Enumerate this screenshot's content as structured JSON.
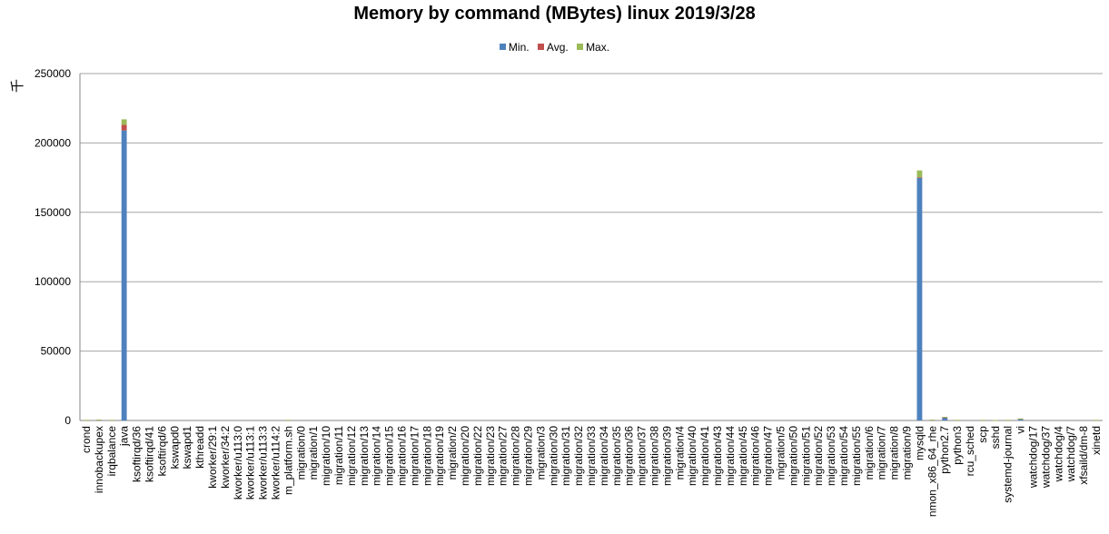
{
  "chart_data": {
    "type": "bar",
    "stacked": true,
    "title": "Memory by command (MBytes) linux  2019/3/28",
    "y_unit": "千",
    "xlabel": "",
    "ylabel": "",
    "ylim": [
      0,
      250000
    ],
    "yticks": [
      0,
      50000,
      100000,
      150000,
      200000,
      250000
    ],
    "grid": true,
    "legend_position": "top",
    "categories": [
      "crond",
      "innobackupex",
      "irqbalance",
      "java",
      "ksoftirqd/36",
      "ksoftirqd/41",
      "ksoftirqd/6",
      "kswapd0",
      "kswapd1",
      "kthreadd",
      "kworker/29:1",
      "kworker/34:2",
      "kworker/u113:0",
      "kworker/u113:1",
      "kworker/u113:3",
      "kworker/u114:2",
      "m_platform.sh",
      "migration/0",
      "migration/1",
      "migration/10",
      "migration/11",
      "migration/12",
      "migration/13",
      "migration/14",
      "migration/15",
      "migration/16",
      "migration/17",
      "migration/18",
      "migration/19",
      "migration/2",
      "migration/20",
      "migration/22",
      "migration/23",
      "migration/27",
      "migration/28",
      "migration/29",
      "migration/3",
      "migration/30",
      "migration/31",
      "migration/32",
      "migration/33",
      "migration/34",
      "migration/35",
      "migration/36",
      "migration/37",
      "migration/38",
      "migration/39",
      "migration/4",
      "migration/40",
      "migration/41",
      "migration/43",
      "migration/44",
      "migration/45",
      "migration/46",
      "migration/47",
      "migration/5",
      "migration/50",
      "migration/51",
      "migration/52",
      "migration/53",
      "migration/54",
      "migration/55",
      "migration/6",
      "migration/7",
      "migration/8",
      "migration/9",
      "mysqld",
      "nmon_x86_64_rhe",
      "python2.7",
      "python3",
      "rcu_sched",
      "scp",
      "sshd",
      "systemd-journal",
      "vi",
      "watchdog/17",
      "watchdog/37",
      "watchdog/4",
      "watchdog/7",
      "xfsaild/dm-8",
      "xinetd"
    ],
    "series": [
      {
        "name": "Min.",
        "color": "#4f81bd",
        "values": [
          300,
          400,
          300,
          209000,
          0,
          0,
          0,
          0,
          0,
          0,
          0,
          0,
          0,
          0,
          0,
          0,
          300,
          0,
          0,
          0,
          0,
          0,
          0,
          0,
          0,
          0,
          0,
          0,
          0,
          0,
          0,
          0,
          0,
          0,
          0,
          0,
          0,
          0,
          0,
          0,
          0,
          0,
          0,
          0,
          0,
          0,
          0,
          0,
          0,
          0,
          0,
          0,
          0,
          0,
          0,
          0,
          0,
          0,
          0,
          0,
          0,
          0,
          0,
          0,
          0,
          0,
          175000,
          400,
          2000,
          300,
          0,
          300,
          200,
          300,
          1200,
          0,
          0,
          0,
          0,
          0,
          300
        ]
      },
      {
        "name": "Avg.",
        "color": "#c0504d",
        "values": [
          50,
          100,
          50,
          4000,
          0,
          0,
          0,
          0,
          0,
          0,
          0,
          0,
          0,
          0,
          0,
          0,
          50,
          0,
          0,
          0,
          0,
          0,
          0,
          0,
          0,
          0,
          0,
          0,
          0,
          0,
          0,
          0,
          0,
          0,
          0,
          0,
          0,
          0,
          0,
          0,
          0,
          0,
          0,
          0,
          0,
          0,
          0,
          0,
          0,
          0,
          0,
          0,
          0,
          0,
          0,
          0,
          0,
          0,
          0,
          0,
          0,
          0,
          0,
          0,
          0,
          0,
          200,
          50,
          300,
          50,
          0,
          50,
          50,
          50,
          100,
          0,
          0,
          0,
          0,
          0,
          50
        ]
      },
      {
        "name": "Max.",
        "color": "#9bbb59",
        "values": [
          50,
          100,
          50,
          4000,
          0,
          0,
          0,
          0,
          0,
          0,
          0,
          0,
          0,
          0,
          0,
          0,
          50,
          0,
          0,
          0,
          0,
          0,
          0,
          0,
          0,
          0,
          0,
          0,
          0,
          0,
          0,
          0,
          0,
          0,
          0,
          0,
          0,
          0,
          0,
          0,
          0,
          0,
          0,
          0,
          0,
          0,
          0,
          0,
          0,
          0,
          0,
          0,
          0,
          0,
          0,
          0,
          0,
          0,
          0,
          0,
          0,
          0,
          0,
          0,
          0,
          0,
          5000,
          50,
          300,
          50,
          0,
          50,
          50,
          50,
          100,
          0,
          0,
          0,
          0,
          0,
          50
        ]
      }
    ]
  }
}
